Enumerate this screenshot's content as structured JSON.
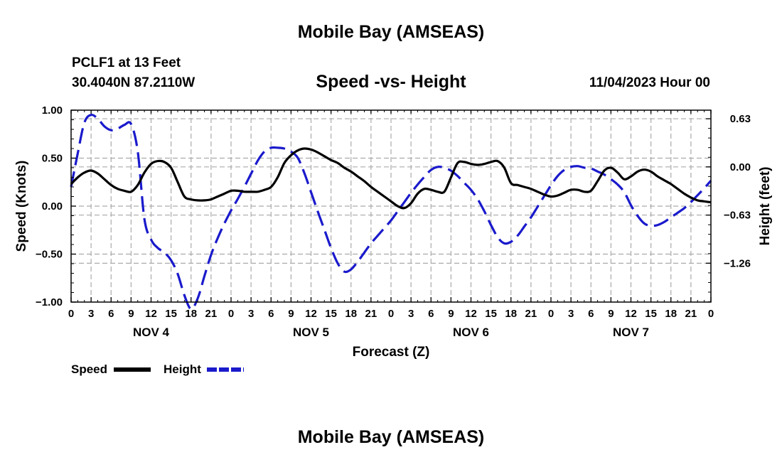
{
  "page": {
    "title_top": "Mobile Bay (AMSEAS)",
    "title_bottom": "Mobile Bay (AMSEAS)",
    "station_line": "PCLF1 at 13 Feet",
    "coords_line": "30.4040N  87.2110W",
    "chart_title": "Speed -vs- Height",
    "date_line": "11/04/2023 Hour 00"
  },
  "colors": {
    "speed": "#000000",
    "height": "#1a1acc",
    "grid": "#aaaaaa"
  },
  "chart_data": {
    "type": "line",
    "title": "Speed -vs- Height",
    "xlabel": "Forecast (Z)",
    "ylabel": "Speed (Knots)",
    "y2label": "Height (feet)",
    "xlim": [
      0,
      96
    ],
    "ylim": [
      -1.0,
      1.0
    ],
    "y2lim": [
      -1.768,
      0.742
    ],
    "yticks": [
      "1.00",
      "0.50",
      "0.00",
      "−0.50",
      "−1.00"
    ],
    "yticks_values": [
      1.0,
      0.5,
      0.0,
      -0.5,
      -1.0
    ],
    "y2ticks": [
      "0.63",
      "0.00",
      "−0.63",
      "−1.26"
    ],
    "y2ticks_values": [
      0.63,
      0.0,
      -0.63,
      -1.26
    ],
    "xtick_labels": [
      "0",
      "3",
      "6",
      "9",
      "12",
      "15",
      "18",
      "21",
      "0",
      "3",
      "6",
      "9",
      "12",
      "15",
      "18",
      "21",
      "0",
      "3",
      "6",
      "9",
      "12",
      "15",
      "18",
      "21",
      "0",
      "3",
      "6",
      "9",
      "12",
      "15",
      "18",
      "21",
      "0"
    ],
    "day_labels": [
      {
        "label": "NOV 4",
        "hour": 12
      },
      {
        "label": "NOV 5",
        "hour": 36
      },
      {
        "label": "NOV 6",
        "hour": 60
      },
      {
        "label": "NOV 7",
        "hour": 84
      }
    ],
    "legend": [
      "Speed",
      "Height"
    ],
    "series": [
      {
        "name": "Speed",
        "units": "knots",
        "axis": "left",
        "style": "solid",
        "x": [
          0,
          1,
          2,
          3,
          4,
          5,
          6,
          7,
          8,
          9,
          10,
          11,
          12,
          13,
          14,
          15,
          16,
          17,
          18,
          19,
          20,
          21,
          22,
          23,
          24,
          25,
          26,
          27,
          28,
          29,
          30,
          31,
          32,
          33,
          34,
          35,
          36,
          37,
          38,
          39,
          40,
          41,
          42,
          43,
          44,
          45,
          46,
          47,
          48,
          49,
          50,
          51,
          52,
          53,
          54,
          55,
          56,
          57,
          58,
          59,
          60,
          61,
          62,
          63,
          64,
          65,
          66,
          67,
          68,
          69,
          70,
          71,
          72,
          73,
          74,
          75,
          76,
          77,
          78,
          79,
          80,
          81,
          82,
          83,
          84,
          85,
          86,
          87,
          88,
          89,
          90,
          91,
          92,
          93,
          94,
          95,
          96
        ],
        "values": [
          0.23,
          0.3,
          0.35,
          0.37,
          0.34,
          0.28,
          0.22,
          0.18,
          0.16,
          0.15,
          0.22,
          0.35,
          0.44,
          0.47,
          0.46,
          0.4,
          0.25,
          0.1,
          0.07,
          0.06,
          0.06,
          0.07,
          0.1,
          0.13,
          0.16,
          0.16,
          0.15,
          0.15,
          0.15,
          0.17,
          0.2,
          0.3,
          0.45,
          0.53,
          0.58,
          0.6,
          0.59,
          0.56,
          0.52,
          0.48,
          0.45,
          0.4,
          0.36,
          0.31,
          0.26,
          0.2,
          0.15,
          0.1,
          0.05,
          0.0,
          -0.02,
          0.03,
          0.13,
          0.18,
          0.17,
          0.15,
          0.15,
          0.3,
          0.45,
          0.46,
          0.44,
          0.43,
          0.44,
          0.46,
          0.47,
          0.4,
          0.24,
          0.22,
          0.2,
          0.18,
          0.15,
          0.12,
          0.1,
          0.11,
          0.14,
          0.17,
          0.17,
          0.15,
          0.16,
          0.26,
          0.37,
          0.4,
          0.35,
          0.28,
          0.31,
          0.36,
          0.38,
          0.36,
          0.31,
          0.27,
          0.23,
          0.18,
          0.13,
          0.09,
          0.06,
          0.05,
          0.04
        ]
      },
      {
        "name": "Height",
        "units": "feet",
        "axis": "right",
        "style": "dashed",
        "x": [
          0,
          1,
          2,
          3,
          4,
          5,
          6,
          7,
          8,
          9,
          10,
          11,
          12,
          13,
          14,
          15,
          16,
          17,
          18,
          19,
          20,
          21,
          22,
          23,
          24,
          25,
          26,
          27,
          28,
          29,
          30,
          31,
          32,
          33,
          34,
          35,
          36,
          37,
          38,
          39,
          40,
          41,
          42,
          43,
          44,
          45,
          46,
          47,
          48,
          49,
          50,
          51,
          52,
          53,
          54,
          55,
          56,
          57,
          58,
          59,
          60,
          61,
          62,
          63,
          64,
          65,
          66,
          67,
          68,
          69,
          70,
          71,
          72,
          73,
          74,
          75,
          76,
          77,
          78,
          79,
          80,
          81,
          82,
          83,
          84,
          85,
          86,
          87,
          88,
          89,
          90,
          91,
          92,
          93,
          94,
          95,
          96
        ],
        "values": [
          -0.26,
          0.18,
          0.58,
          0.68,
          0.63,
          0.53,
          0.48,
          0.5,
          0.55,
          0.56,
          0.2,
          -0.68,
          -0.95,
          -1.06,
          -1.12,
          -1.22,
          -1.4,
          -1.68,
          -1.86,
          -1.72,
          -1.43,
          -1.15,
          -0.93,
          -0.74,
          -0.57,
          -0.42,
          -0.26,
          -0.09,
          0.08,
          0.2,
          0.25,
          0.25,
          0.24,
          0.2,
          0.12,
          -0.08,
          -0.33,
          -0.58,
          -0.82,
          -1.06,
          -1.26,
          -1.37,
          -1.34,
          -1.24,
          -1.12,
          -1.0,
          -0.9,
          -0.8,
          -0.7,
          -0.58,
          -0.46,
          -0.34,
          -0.23,
          -0.13,
          -0.04,
          0.0,
          -0.01,
          -0.05,
          -0.12,
          -0.21,
          -0.3,
          -0.42,
          -0.58,
          -0.76,
          -0.92,
          -1.0,
          -0.98,
          -0.9,
          -0.78,
          -0.66,
          -0.52,
          -0.38,
          -0.24,
          -0.12,
          -0.04,
          0.0,
          0.01,
          -0.01,
          -0.02,
          -0.06,
          -0.1,
          -0.16,
          -0.23,
          -0.33,
          -0.5,
          -0.64,
          -0.74,
          -0.77,
          -0.76,
          -0.72,
          -0.66,
          -0.6,
          -0.54,
          -0.46,
          -0.37,
          -0.28,
          -0.18
        ]
      }
    ]
  }
}
